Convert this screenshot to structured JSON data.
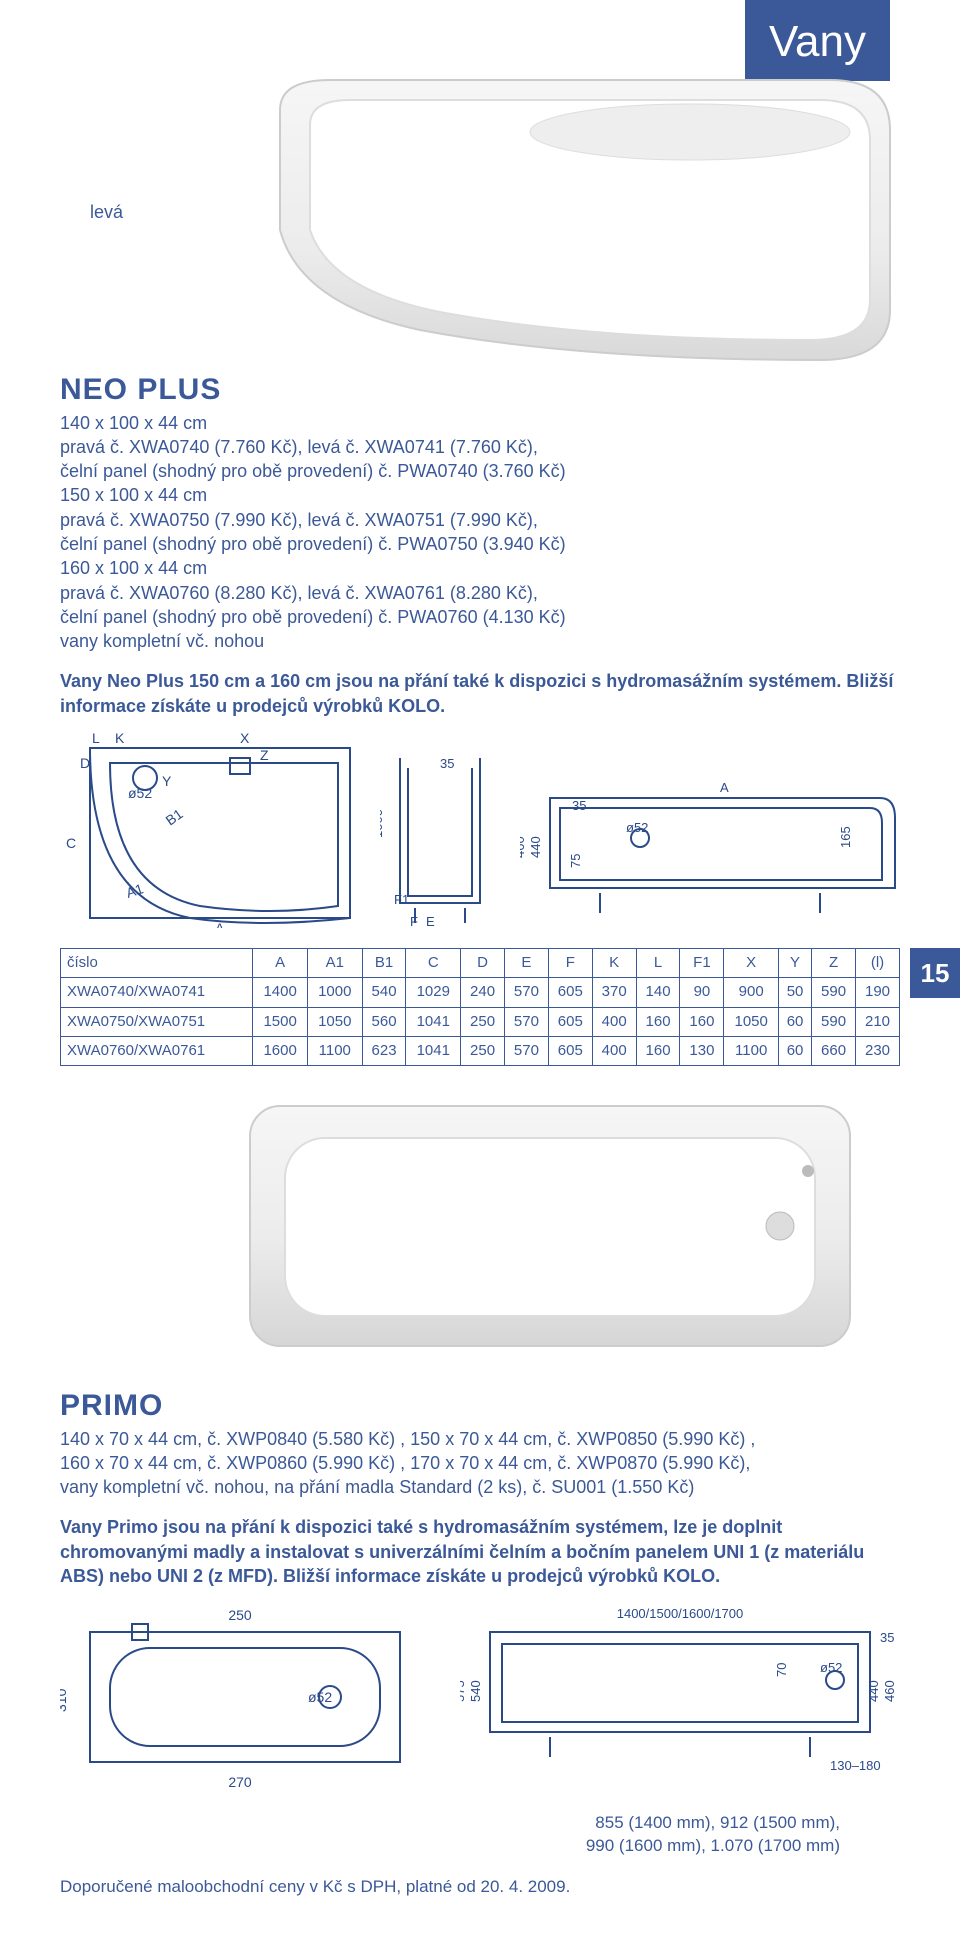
{
  "section_tab": "Vany",
  "page_number": "15",
  "colors": {
    "brand": "#3b5998",
    "text": "#3b5998",
    "bg": "#ffffff",
    "table_border": "#3b5998",
    "drawing_stroke": "#2a4a8a"
  },
  "neo": {
    "label_leva": "levá",
    "title": "NEO PLUS",
    "lines": [
      "140 x 100 x 44 cm",
      "pravá č. XWA0740 (7.760 Kč), levá č. XWA0741 (7.760 Kč),",
      "čelní panel (shodný pro obě provedení) č. PWA0740 (3.760 Kč)",
      "150 x 100 x 44 cm",
      "pravá č. XWA0750 (7.990 Kč), levá č. XWA0751 (7.990 Kč),",
      "čelní panel (shodný pro obě provedení) č. PWA0750 (3.940 Kč)",
      "160 x 100 x 44 cm",
      "pravá č. XWA0760 (8.280 Kč), levá č. XWA0761 (8.280 Kč),",
      "čelní panel (shodný pro obě provedení) č. PWA0760 (4.130 Kč)",
      "vany kompletní vč. nohou"
    ],
    "desc": "Vany Neo Plus 150 cm a 160 cm jsou na přání také k dispozici s hydromasážním systémem. Bližší informace získáte u prodejců výrobků KOLO.",
    "drawing_labels": {
      "K": "K",
      "L": "L",
      "X": "X",
      "Z": "Z",
      "Y": "Y",
      "D": "D",
      "C": "C",
      "B1": "B1",
      "A1": "A1",
      "A_bottom": "A",
      "d52": "ø52",
      "h1000": "1000",
      "F1": "F1",
      "E": "E",
      "F": "F",
      "h35": "35",
      "h460": "460",
      "h440": "440",
      "h75": "75",
      "h165": "165",
      "A_right": "A"
    },
    "table": {
      "header": [
        "číslo",
        "A",
        "A1",
        "B1",
        "C",
        "D",
        "E",
        "F",
        "K",
        "L",
        "F1",
        "X",
        "Y",
        "Z",
        "(l)"
      ],
      "rows": [
        [
          "XWA0740/XWA0741",
          "1400",
          "1000",
          "540",
          "1029",
          "240",
          "570",
          "605",
          "370",
          "140",
          "90",
          "900",
          "50",
          "590",
          "190"
        ],
        [
          "XWA0750/XWA0751",
          "1500",
          "1050",
          "560",
          "1041",
          "250",
          "570",
          "605",
          "400",
          "160",
          "160",
          "1050",
          "60",
          "590",
          "210"
        ],
        [
          "XWA0760/XWA0761",
          "1600",
          "1100",
          "623",
          "1041",
          "250",
          "570",
          "605",
          "400",
          "160",
          "130",
          "1100",
          "60",
          "660",
          "230"
        ]
      ]
    }
  },
  "primo": {
    "title": "PRIMO",
    "lines": [
      "140 x 70 x 44 cm, č. XWP0840 (5.580 Kč) , 150 x 70 x 44 cm, č. XWP0850 (5.990 Kč) ,",
      "160 x 70 x 44 cm, č. XWP0860 (5.990 Kč) , 170 x 70 x 44 cm, č. XWP0870 (5.990 Kč),",
      "vany kompletní vč. nohou, na přání madla Standard (2 ks), č. SU001 (1.550 Kč)"
    ],
    "desc": "Vany Primo jsou na přání k dispozici také s hydromasážním systémem, lze je doplnit chromovanými madly a instalovat s univerzálními čelním a bočním panelem UNI 1 (z materiálu ABS) nebo UNI 2 (z MFD). Bližší informace získáte u prodejců výrobků KOLO.",
    "drawing_labels": {
      "w250": "250",
      "w270": "270",
      "h310": "310",
      "d52": "ø52",
      "wtop": "1400/1500/1600/1700",
      "h575": "575",
      "h540": "540",
      "h70": "70",
      "h35": "35",
      "h440": "440",
      "h460": "460",
      "r130": "130–180"
    },
    "foot_line": "855 (1400 mm), 912 (1500 mm),\n990 (1600 mm), 1.070 (1700 mm)"
  },
  "price_note": "Doporučené maloobchodní ceny v Kč s DPH, platné od 20. 4. 2009."
}
